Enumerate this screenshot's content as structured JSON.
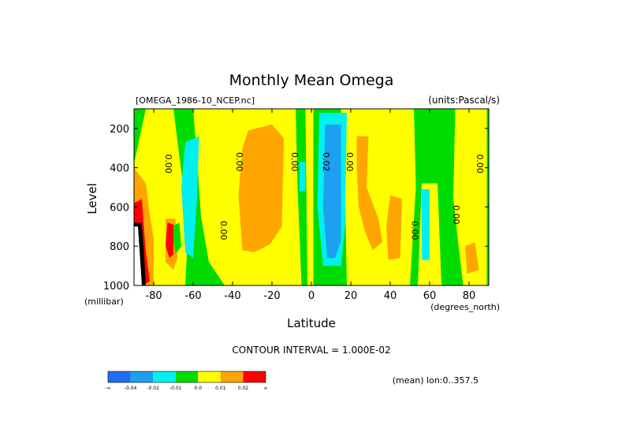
{
  "chart_data": {
    "type": "heatmap",
    "title": "Monthly Mean Omega",
    "file_label": "[OMEGA_1986-10_NCEP.nc]",
    "units_label": "(units:Pascal/s)",
    "xlabel": "Latitude",
    "ylabel": "Level",
    "y_unit_label": "(millibar)",
    "x_unit_label": "(degrees_north)",
    "xlim": [
      -90,
      90
    ],
    "ylim": [
      1000,
      100
    ],
    "xticks": [
      -80,
      -60,
      -40,
      -20,
      0,
      20,
      40,
      60,
      80
    ],
    "xtick_labels": [
      "-80",
      "-60",
      "-40",
      "-20",
      "0",
      "20",
      "40",
      "60",
      "80"
    ],
    "yticks": [
      200,
      400,
      600,
      800,
      1000
    ],
    "ytick_labels": [
      "200",
      "400",
      "600",
      "800",
      "1000"
    ],
    "contour_interval_text": "CONTOUR INTERVAL = 1.000E-02",
    "footer_text": "(mean) lon:0..357.5",
    "contour_labels": [
      {
        "text": "0.00",
        "lat": -74,
        "p": 380
      },
      {
        "text": "0.00",
        "lat": -46,
        "p": 720
      },
      {
        "text": "0.00",
        "lat": -38,
        "p": 370
      },
      {
        "text": "0.00",
        "lat": -10,
        "p": 370
      },
      {
        "text": "0.02",
        "lat": 6,
        "p": 370
      },
      {
        "text": "0.00",
        "lat": 18,
        "p": 370
      },
      {
        "text": "0.00",
        "lat": 51,
        "p": 720
      },
      {
        "text": "0.00",
        "lat": 72,
        "p": 640
      },
      {
        "text": "0.00",
        "lat": 84,
        "p": 380
      }
    ],
    "colorbar": {
      "colors": [
        "#1f6df5",
        "#1ea0f0",
        "#00f0f0",
        "#00dc00",
        "#ffff00",
        "#ffa500",
        "#ff0000"
      ],
      "labels": [
        "-∞",
        "-0.04",
        "-0.02",
        "-0.01",
        "0.0",
        "0.01",
        "0.02",
        "∞"
      ]
    },
    "regions": [
      {
        "color": "#00dc00",
        "points": [
          [
            -90,
            100
          ],
          [
            90,
            100
          ],
          [
            90,
            1000
          ],
          [
            -90,
            1000
          ]
        ]
      },
      {
        "color": "#ffff00",
        "points": [
          [
            -84,
            100
          ],
          [
            -70,
            100
          ],
          [
            -65,
            500
          ],
          [
            -63,
            800
          ],
          [
            -64,
            1000
          ],
          [
            -80,
            1000
          ],
          [
            -88,
            700
          ],
          [
            -90,
            600
          ],
          [
            -90,
            380
          ]
        ]
      },
      {
        "color": "#ffff00",
        "points": [
          [
            -60,
            100
          ],
          [
            -8,
            100
          ],
          [
            -7,
            500
          ],
          [
            -5,
            1000
          ],
          [
            -44,
            1000
          ],
          [
            -52,
            880
          ],
          [
            -56,
            650
          ],
          [
            -58,
            350
          ]
        ]
      },
      {
        "color": "#ffff00",
        "points": [
          [
            -3,
            100
          ],
          [
            1,
            100
          ],
          [
            1,
            1000
          ],
          [
            -2,
            1000
          ]
        ]
      },
      {
        "color": "#ffff00",
        "points": [
          [
            15,
            100
          ],
          [
            52,
            100
          ],
          [
            53,
            500
          ],
          [
            50,
            1000
          ],
          [
            18,
            1000
          ],
          [
            17,
            500
          ]
        ]
      },
      {
        "color": "#ffff00",
        "points": [
          [
            73,
            100
          ],
          [
            89,
            100
          ],
          [
            89,
            1000
          ],
          [
            77,
            1000
          ],
          [
            72,
            560
          ]
        ]
      },
      {
        "color": "#ffff00",
        "points": [
          [
            56,
            480
          ],
          [
            64,
            480
          ],
          [
            66,
            1000
          ],
          [
            54,
            1000
          ]
        ]
      },
      {
        "color": "#ffa500",
        "points": [
          [
            -90,
            400
          ],
          [
            -84,
            480
          ],
          [
            -82,
            640
          ],
          [
            -80,
            760
          ],
          [
            -80,
            1000
          ],
          [
            -90,
            1000
          ]
        ]
      },
      {
        "color": "#ffa500",
        "points": [
          [
            -74,
            660
          ],
          [
            -69,
            660
          ],
          [
            -68,
            860
          ],
          [
            -70,
            920
          ],
          [
            -74,
            880
          ]
        ]
      },
      {
        "color": "#ffa500",
        "points": [
          [
            -32,
            210
          ],
          [
            -20,
            180
          ],
          [
            -14,
            250
          ],
          [
            -15,
            700
          ],
          [
            -21,
            790
          ],
          [
            -29,
            830
          ],
          [
            -35,
            820
          ],
          [
            -37,
            540
          ],
          [
            -35,
            300
          ]
        ]
      },
      {
        "color": "#ffa500",
        "points": [
          [
            23,
            240
          ],
          [
            29,
            240
          ],
          [
            28,
            500
          ],
          [
            34,
            660
          ],
          [
            36,
            780
          ],
          [
            31,
            820
          ],
          [
            27,
            720
          ],
          [
            24,
            600
          ],
          [
            23,
            400
          ]
        ]
      },
      {
        "color": "#ffa500",
        "points": [
          [
            40,
            540
          ],
          [
            46,
            560
          ],
          [
            45,
            860
          ],
          [
            39,
            870
          ],
          [
            38,
            700
          ]
        ]
      },
      {
        "color": "#ffa500",
        "points": [
          [
            78,
            800
          ],
          [
            83,
            780
          ],
          [
            85,
            920
          ],
          [
            79,
            940
          ]
        ]
      },
      {
        "color": "#00f0f0",
        "points": [
          [
            -64,
            270
          ],
          [
            -57,
            240
          ],
          [
            -58,
            550
          ],
          [
            -60,
            860
          ],
          [
            -64,
            830
          ],
          [
            -66,
            500
          ]
        ]
      },
      {
        "color": "#00f0f0",
        "points": [
          [
            4,
            120
          ],
          [
            18,
            120
          ],
          [
            17,
            700
          ],
          [
            15,
            900
          ],
          [
            6,
            900
          ],
          [
            3,
            600
          ]
        ]
      },
      {
        "color": "#00f0f0",
        "points": [
          [
            -6,
            370
          ],
          [
            -3,
            370
          ],
          [
            -3,
            520
          ],
          [
            -6,
            520
          ]
        ]
      },
      {
        "color": "#00f0f0",
        "points": [
          [
            56,
            510
          ],
          [
            60,
            510
          ],
          [
            60,
            870
          ],
          [
            56,
            870
          ]
        ]
      },
      {
        "color": "#00dc00",
        "points": [
          [
            -71,
            700
          ],
          [
            -67,
            680
          ],
          [
            -66,
            800
          ],
          [
            -69,
            840
          ]
        ]
      },
      {
        "color": "#1ea0f0",
        "points": [
          [
            7,
            180
          ],
          [
            15,
            180
          ],
          [
            15,
            770
          ],
          [
            12,
            860
          ],
          [
            8,
            860
          ],
          [
            6,
            600
          ]
        ]
      },
      {
        "color": "#ff0000",
        "points": [
          [
            -90,
            580
          ],
          [
            -86,
            560
          ],
          [
            -85,
            700
          ],
          [
            -84,
            830
          ],
          [
            -82,
            980
          ],
          [
            -86,
            1000
          ],
          [
            -90,
            1000
          ]
        ]
      },
      {
        "color": "#ff0000",
        "points": [
          [
            -73,
            680
          ],
          [
            -70,
            690
          ],
          [
            -70,
            840
          ],
          [
            -72,
            860
          ],
          [
            -74,
            800
          ]
        ]
      }
    ],
    "black_regions": [
      {
        "points": [
          [
            -90,
            680
          ],
          [
            -86,
            680
          ],
          [
            -85,
            830
          ],
          [
            -84,
            1000
          ],
          [
            -90,
            1000
          ]
        ]
      }
    ],
    "white_regions": [
      {
        "points": [
          [
            -90,
            700
          ],
          [
            -88,
            700
          ],
          [
            -87,
            850
          ],
          [
            -86,
            1000
          ],
          [
            -90,
            1000
          ]
        ]
      }
    ]
  }
}
